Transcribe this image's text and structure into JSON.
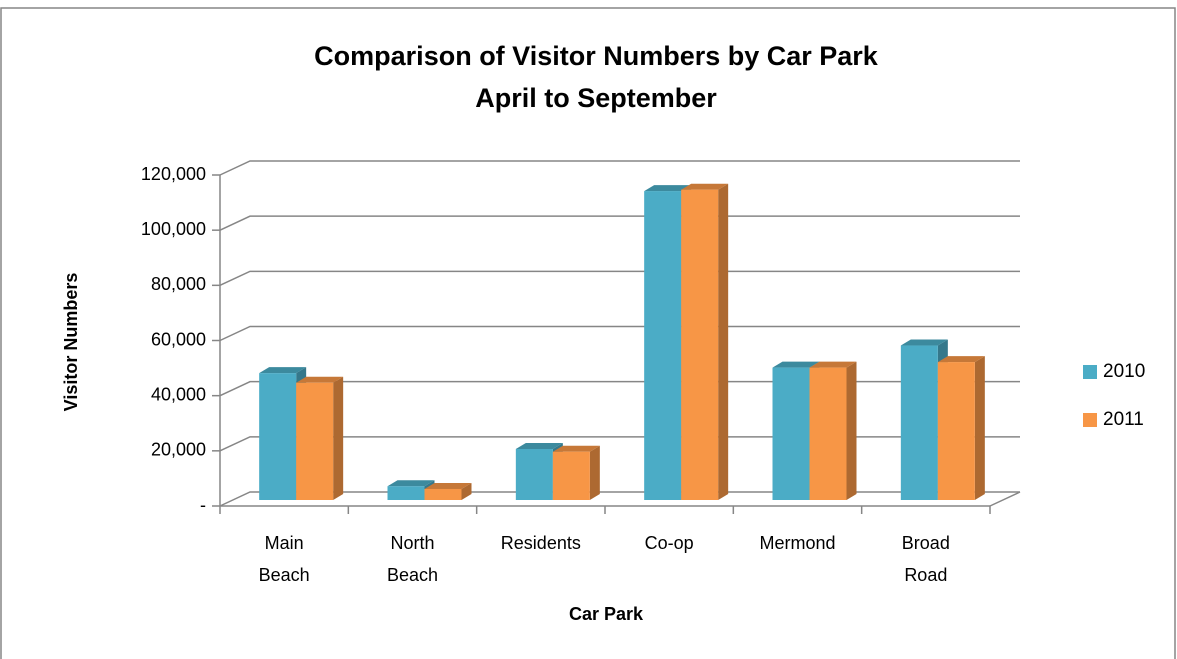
{
  "chart_data": {
    "type": "bar3d",
    "title": "Comparison of Visitor Numbers by Car Park",
    "subtitle": "April to September",
    "x_label": "Car Park",
    "y_label": "Visitor Numbers",
    "categories": [
      "Main Beach",
      "North Beach",
      "Residents",
      "Co-op",
      "Mermond",
      "Broad Road"
    ],
    "series": [
      {
        "name": "2010",
        "color": "#4bacc6",
        "values": [
          46000,
          5000,
          18500,
          112000,
          48000,
          56000
        ]
      },
      {
        "name": "2011",
        "color": "#f79646",
        "values": [
          42500,
          4000,
          17500,
          112500,
          48000,
          50000
        ]
      }
    ],
    "ylim": [
      0,
      120000
    ],
    "yticks": [
      {
        "value": 0,
        "label": "-"
      },
      {
        "value": 20000,
        "label": "20,000"
      },
      {
        "value": 40000,
        "label": "40,000"
      },
      {
        "value": 60000,
        "label": "60,000"
      },
      {
        "value": 80000,
        "label": "80,000"
      },
      {
        "value": 100000,
        "label": "100,000"
      },
      {
        "value": 120000,
        "label": "120,000"
      }
    ],
    "grid": true,
    "legend": "right"
  }
}
